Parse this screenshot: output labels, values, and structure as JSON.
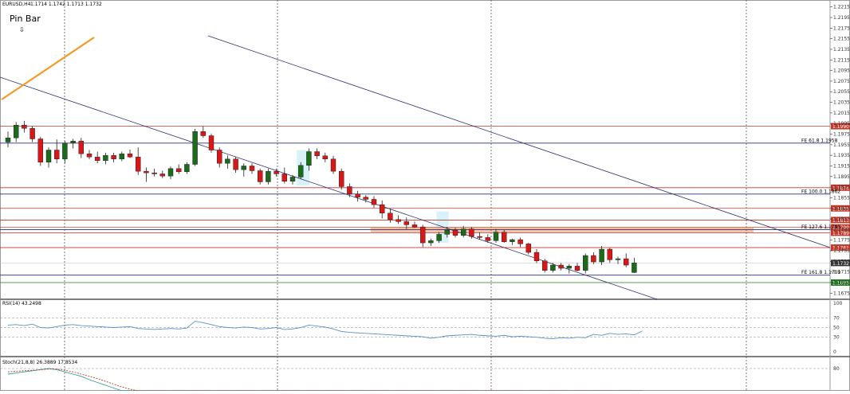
{
  "header": {
    "symbol": "EURUSD,H4",
    "ohlc": "1.1714 1.1742 1.1713 1.1732"
  },
  "annotation": {
    "pin_bar": "Pin Bar",
    "arrow_glyph": "⇩"
  },
  "colors": {
    "bull": "#1b6b1b",
    "bear": "#d81818",
    "red_level": "#c0392b",
    "blue_level": "#2c2c8c",
    "green_tag": "#1e7d1e",
    "price_tag": "#333333",
    "trend": "#f29a1e",
    "zone": "#f4b183",
    "highlight": "#cdeff7",
    "rsi": "#5b8fc9",
    "stoch_main": "#2aa198",
    "stoch_signal": "#c0392b"
  },
  "chart_data": {
    "type": "candlestick",
    "symbol": "EURUSD",
    "timeframe": "H4",
    "ylim": [
      1.1665,
      1.2225
    ],
    "price_ticks": [
      "1.2215",
      "1.2195",
      "1.2175",
      "1.2155",
      "1.2135",
      "1.2115",
      "1.2095",
      "1.2075",
      "1.2055",
      "1.2035",
      "1.2015",
      "1.1995",
      "1.1975",
      "1.1955",
      "1.1935",
      "1.1915",
      "1.1895",
      "1.1875",
      "1.1855",
      "1.1835",
      "1.1815",
      "1.1795",
      "1.1775",
      "1.1755",
      "1.1735",
      "1.1715",
      "1.1695",
      "1.1675"
    ],
    "current_price": "1.1732",
    "levels": [
      {
        "value": 1.199,
        "tag": "1.1990",
        "kind": "red"
      },
      {
        "value": 1.1958,
        "tag": "",
        "label": "FE 61.8 1.1958",
        "kind": "blue"
      },
      {
        "value": 1.1874,
        "tag": "1.1874",
        "kind": "red"
      },
      {
        "value": 1.1862,
        "tag": "",
        "label": "FE 100.0 1.1862",
        "kind": "blue"
      },
      {
        "value": 1.1835,
        "tag": "1.1835",
        "kind": "red"
      },
      {
        "value": 1.1813,
        "tag": "1.1813",
        "kind": "red"
      },
      {
        "value": 1.1799,
        "tag": "1.1799",
        "kind": "red"
      },
      {
        "value": 1.1795,
        "tag": "",
        "label": "FE 127.6 1.1795",
        "kind": "blue"
      },
      {
        "value": 1.1789,
        "tag": "1.1789",
        "kind": "red"
      },
      {
        "value": 1.1761,
        "tag": "1.1761",
        "kind": "red"
      },
      {
        "value": 1.1709,
        "tag": "",
        "label": "FE 161.8 1.1709",
        "kind": "blue"
      },
      {
        "value": 1.1695,
        "tag": "1.1695",
        "kind": "green"
      }
    ],
    "resistance_zone": [
      1.1789,
      1.1799
    ],
    "candles": [
      [
        1.196,
        1.198,
        1.195,
        1.1968
      ],
      [
        1.1968,
        1.1998,
        1.196,
        1.1992
      ],
      [
        1.1992,
        1.2,
        1.1978,
        1.1986
      ],
      [
        1.1986,
        1.199,
        1.196,
        1.1966
      ],
      [
        1.1966,
        1.197,
        1.1915,
        1.1922
      ],
      [
        1.1922,
        1.195,
        1.1912,
        1.1945
      ],
      [
        1.1945,
        1.1965,
        1.192,
        1.1928
      ],
      [
        1.1928,
        1.1962,
        1.192,
        1.1958
      ],
      [
        1.1958,
        1.1966,
        1.1948,
        1.1962
      ],
      [
        1.1962,
        1.1968,
        1.193,
        1.1938
      ],
      [
        1.1938,
        1.1945,
        1.1928,
        1.1932
      ],
      [
        1.1932,
        1.1942,
        1.192,
        1.1925
      ],
      [
        1.1925,
        1.194,
        1.1918,
        1.1935
      ],
      [
        1.1935,
        1.194,
        1.1922,
        1.1928
      ],
      [
        1.1928,
        1.1942,
        1.1924,
        1.1938
      ],
      [
        1.1938,
        1.1946,
        1.193,
        1.1932
      ],
      [
        1.1932,
        1.195,
        1.1898,
        1.1905
      ],
      [
        1.1905,
        1.1912,
        1.1885,
        1.1902
      ],
      [
        1.1902,
        1.191,
        1.1895,
        1.19
      ],
      [
        1.19,
        1.1906,
        1.1892,
        1.1896
      ],
      [
        1.1896,
        1.1914,
        1.189,
        1.191
      ],
      [
        1.191,
        1.1918,
        1.19,
        1.1904
      ],
      [
        1.1904,
        1.1922,
        1.19,
        1.1918
      ],
      [
        1.1918,
        1.1985,
        1.1915,
        1.198
      ],
      [
        1.198,
        1.199,
        1.1968,
        1.1972
      ],
      [
        1.1972,
        1.1976,
        1.194,
        1.1945
      ],
      [
        1.1945,
        1.195,
        1.1912,
        1.192
      ],
      [
        1.192,
        1.1935,
        1.191,
        1.1928
      ],
      [
        1.1928,
        1.1932,
        1.1902,
        1.1908
      ],
      [
        1.1908,
        1.192,
        1.1895,
        1.1915
      ],
      [
        1.1915,
        1.192,
        1.19,
        1.1906
      ],
      [
        1.1906,
        1.191,
        1.188,
        1.1885
      ],
      [
        1.1885,
        1.191,
        1.188,
        1.1905
      ],
      [
        1.1905,
        1.191,
        1.1895,
        1.19
      ],
      [
        1.19,
        1.1912,
        1.1882,
        1.1886
      ],
      [
        1.1886,
        1.1898,
        1.188,
        1.1894
      ],
      [
        1.1894,
        1.1922,
        1.189,
        1.1916
      ],
      [
        1.1916,
        1.1948,
        1.1906,
        1.1942
      ],
      [
        1.1942,
        1.1948,
        1.1928,
        1.1934
      ],
      [
        1.1934,
        1.194,
        1.1922,
        1.1928
      ],
      [
        1.1928,
        1.1934,
        1.19,
        1.1905
      ],
      [
        1.1905,
        1.191,
        1.187,
        1.1876
      ],
      [
        1.1876,
        1.1882,
        1.1856,
        1.1862
      ],
      [
        1.1862,
        1.1868,
        1.1848,
        1.1856
      ],
      [
        1.1856,
        1.186,
        1.1846,
        1.1852
      ],
      [
        1.1852,
        1.1858,
        1.1836,
        1.1842
      ],
      [
        1.1842,
        1.185,
        1.1816,
        1.1826
      ],
      [
        1.1826,
        1.1834,
        1.1808,
        1.1814
      ],
      [
        1.1814,
        1.1822,
        1.1806,
        1.181
      ],
      [
        1.181,
        1.1818,
        1.1796,
        1.1804
      ],
      [
        1.1804,
        1.181,
        1.1798,
        1.18
      ],
      [
        1.18,
        1.1804,
        1.1762,
        1.177
      ],
      [
        1.177,
        1.1778,
        1.1764,
        1.1774
      ],
      [
        1.1774,
        1.179,
        1.177,
        1.1786
      ],
      [
        1.1786,
        1.18,
        1.178,
        1.1794
      ],
      [
        1.1794,
        1.1798,
        1.178,
        1.1784
      ],
      [
        1.1784,
        1.1802,
        1.178,
        1.1796
      ],
      [
        1.1796,
        1.18,
        1.1778,
        1.1782
      ],
      [
        1.1782,
        1.179,
        1.1776,
        1.178
      ],
      [
        1.178,
        1.1786,
        1.177,
        1.1774
      ],
      [
        1.1774,
        1.1796,
        1.177,
        1.179
      ],
      [
        1.179,
        1.1794,
        1.177,
        1.1772
      ],
      [
        1.1772,
        1.1778,
        1.1766,
        1.1776
      ],
      [
        1.1776,
        1.178,
        1.1762,
        1.1768
      ],
      [
        1.1768,
        1.177,
        1.1748,
        1.1752
      ],
      [
        1.1752,
        1.1758,
        1.1732,
        1.1736
      ],
      [
        1.1736,
        1.174,
        1.1714,
        1.1718
      ],
      [
        1.1718,
        1.1732,
        1.1714,
        1.1728
      ],
      [
        1.1728,
        1.1732,
        1.1718,
        1.1722
      ],
      [
        1.1722,
        1.173,
        1.1712,
        1.1726
      ],
      [
        1.1726,
        1.1732,
        1.1716,
        1.1718
      ],
      [
        1.1718,
        1.175,
        1.1712,
        1.1746
      ],
      [
        1.1746,
        1.1752,
        1.173,
        1.1734
      ],
      [
        1.1734,
        1.1764,
        1.1728,
        1.1758
      ],
      [
        1.1758,
        1.176,
        1.1732,
        1.1738
      ],
      [
        1.1738,
        1.1744,
        1.173,
        1.174
      ],
      [
        1.174,
        1.175,
        1.1724,
        1.1728
      ],
      [
        1.1714,
        1.1742,
        1.1713,
        1.1732
      ]
    ],
    "rsi": {
      "label": "RSI(14) 43.2498",
      "ylim": [
        0,
        100
      ],
      "ticks": [
        "100",
        "70",
        "50",
        "30",
        "0"
      ],
      "levels": [
        70,
        50,
        30
      ],
      "values": [
        55,
        56,
        54,
        57,
        50,
        49,
        52,
        55,
        56,
        54,
        53,
        52,
        51,
        50,
        51,
        52,
        48,
        47,
        46,
        47,
        48,
        47,
        49,
        63,
        60,
        56,
        52,
        50,
        49,
        51,
        50,
        47,
        48,
        50,
        46,
        47,
        50,
        55,
        53,
        51,
        47,
        42,
        40,
        39,
        38,
        37,
        36,
        35,
        34,
        33,
        32,
        31,
        28,
        30,
        33,
        34,
        35,
        36,
        34,
        33,
        32,
        34,
        31,
        32,
        31,
        30,
        28,
        27,
        29,
        28,
        30,
        29,
        36,
        34,
        38,
        36,
        37,
        35,
        43
      ]
    },
    "stoch": {
      "label": "Stoch(21,8,8) 26.3889 17.8534",
      "ylim": [
        0,
        100
      ],
      "ticks": [
        "100",
        "80",
        "20",
        "0"
      ],
      "levels": [
        80,
        20
      ],
      "main": [
        70,
        72,
        74,
        76,
        78,
        80,
        78,
        74,
        70,
        66,
        60,
        55,
        50,
        45,
        40,
        38,
        34,
        30,
        26,
        22,
        18,
        15,
        12,
        10,
        9,
        11,
        14,
        18,
        22,
        26,
        28,
        26,
        22,
        18,
        16,
        18,
        20,
        24,
        28,
        30,
        26,
        22,
        18,
        14,
        10,
        8,
        7,
        6,
        5,
        5,
        6,
        7,
        8,
        9,
        10,
        9,
        8,
        8,
        7,
        7,
        8,
        8,
        7,
        7,
        6,
        6,
        5,
        5,
        5,
        6,
        7,
        8,
        10,
        12,
        14,
        16,
        18,
        22,
        26
      ],
      "signal": [
        74,
        75,
        76,
        77,
        78,
        79,
        79,
        77,
        74,
        70,
        66,
        62,
        57,
        52,
        47,
        43,
        40,
        36,
        32,
        28,
        24,
        20,
        17,
        14,
        12,
        12,
        13,
        15,
        18,
        22,
        24,
        25,
        24,
        21,
        19,
        18,
        19,
        21,
        24,
        27,
        27,
        25,
        22,
        18,
        15,
        12,
        10,
        8,
        7,
        6,
        6,
        6,
        7,
        8,
        9,
        9,
        9,
        8,
        8,
        8,
        8,
        8,
        8,
        7,
        7,
        7,
        6,
        6,
        6,
        6,
        6,
        7,
        8,
        9,
        11,
        13,
        15,
        17,
        18
      ]
    }
  }
}
